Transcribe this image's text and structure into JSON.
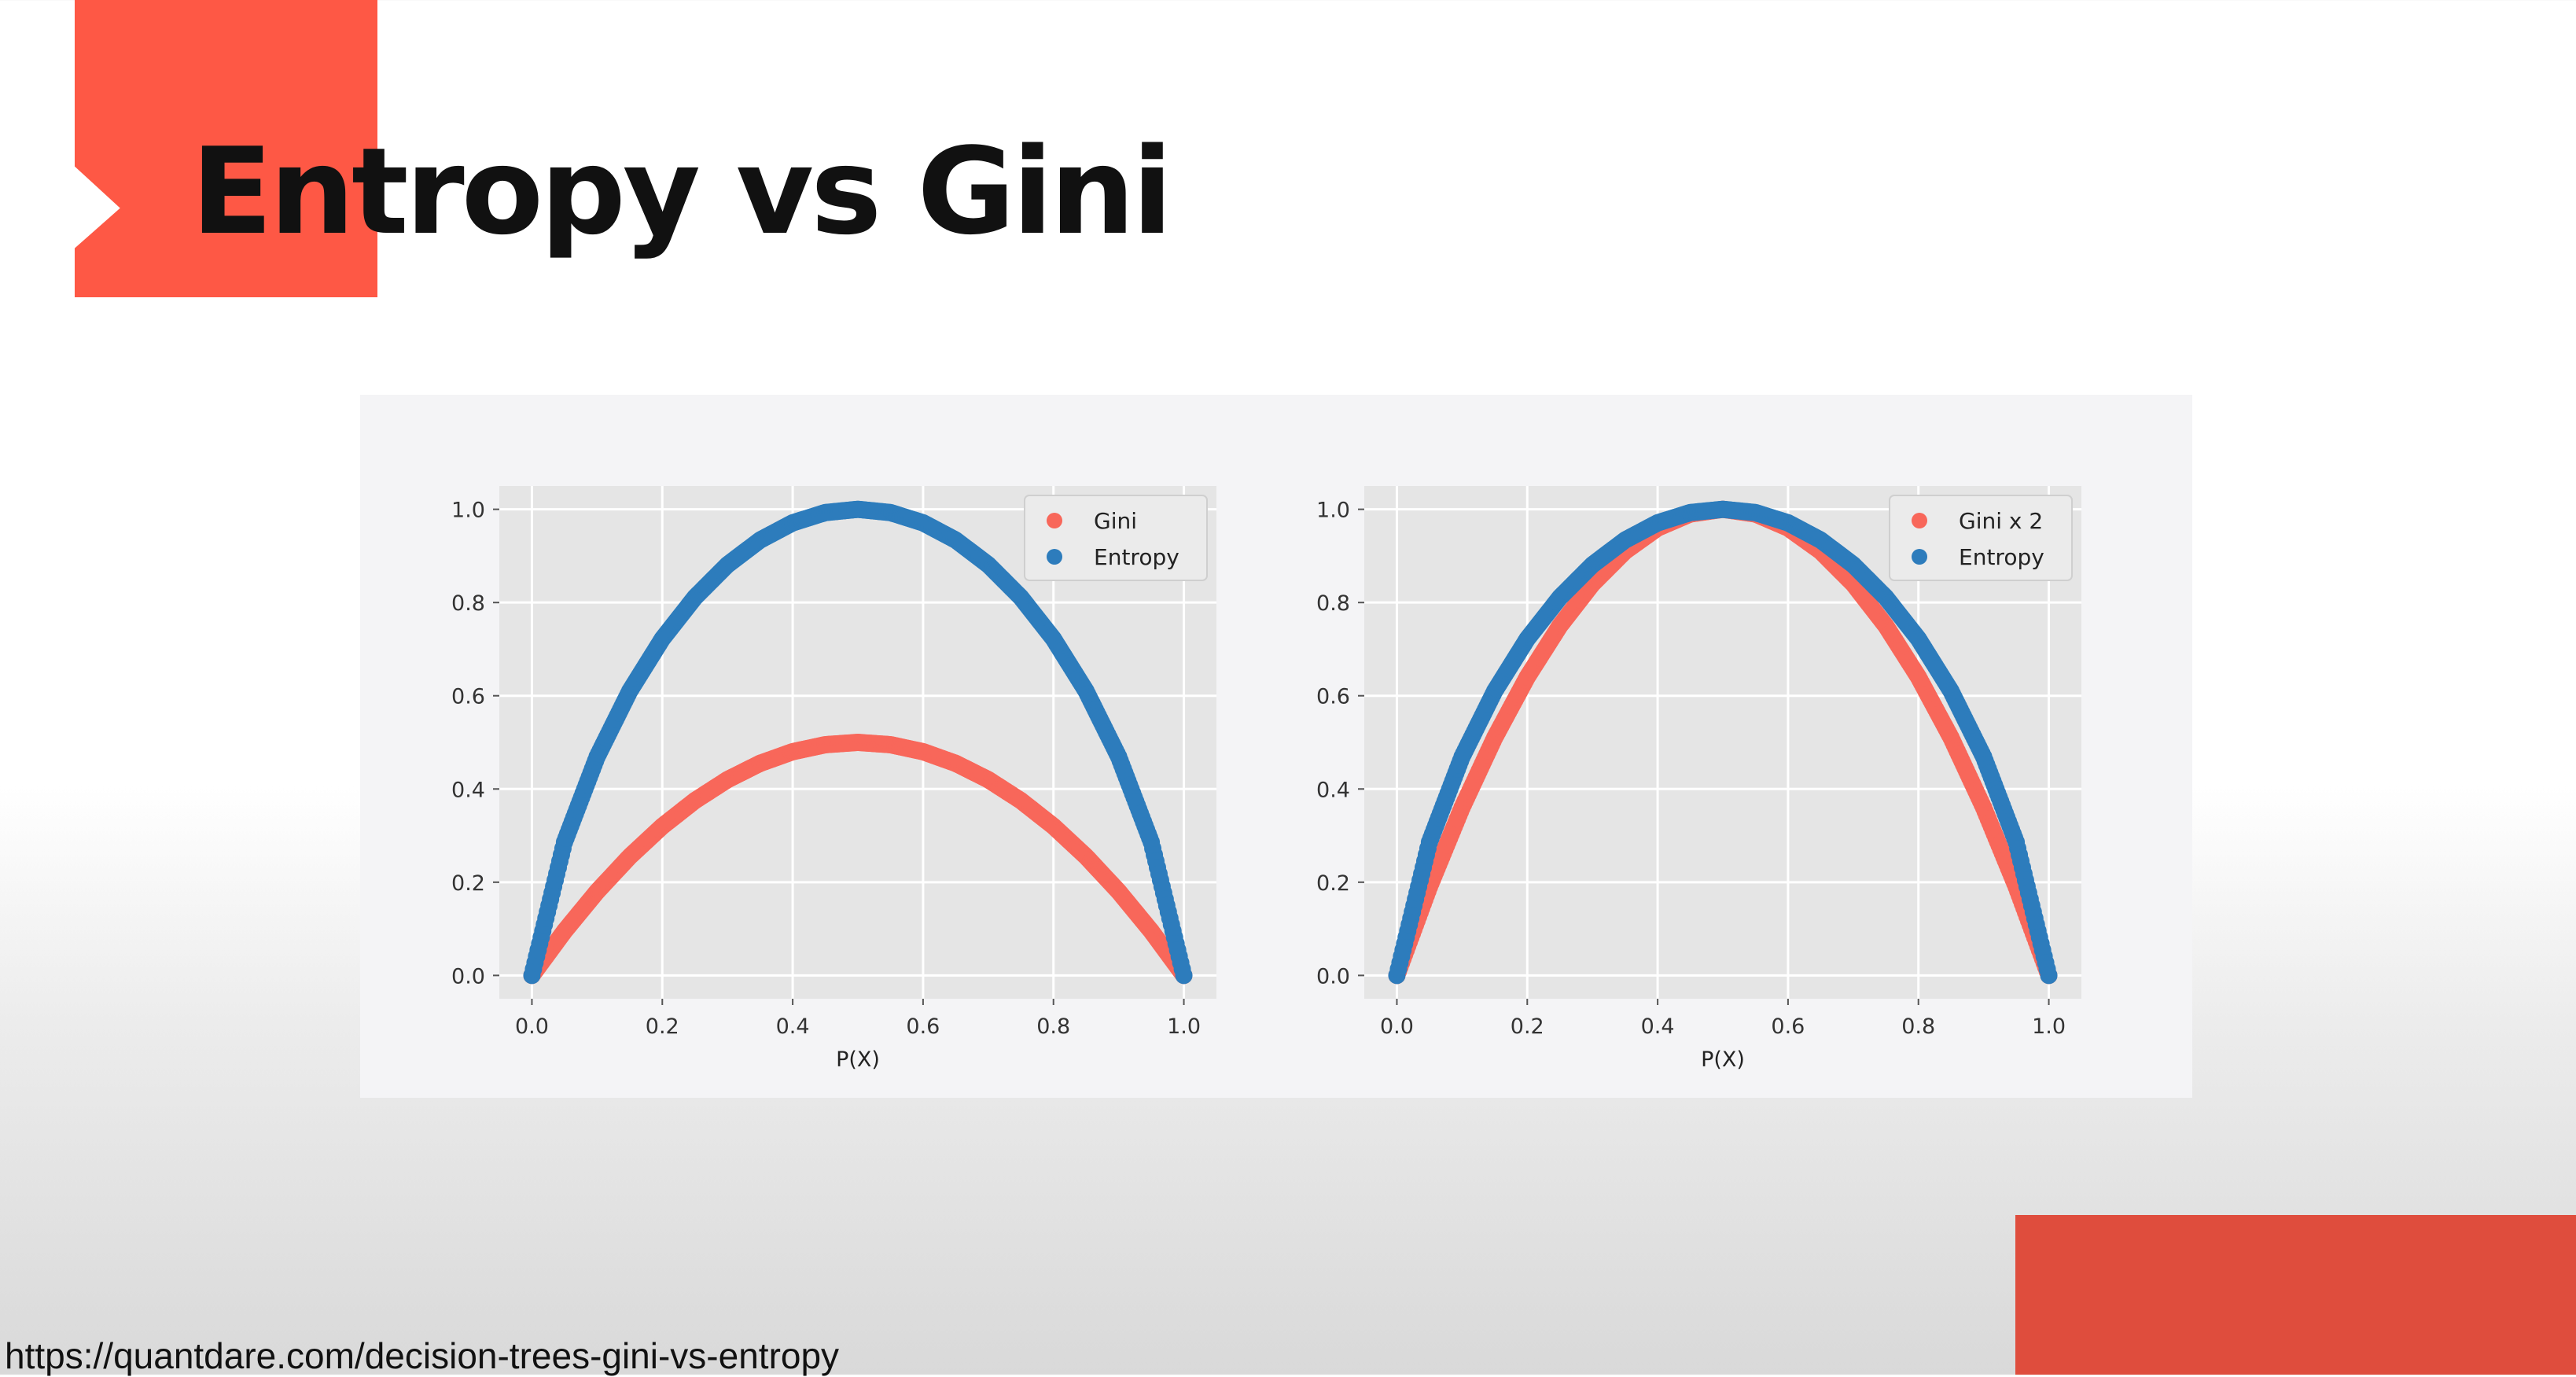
{
  "slide": {
    "title": "Entropy vs Gini",
    "source_url": "https://quantdare.com/decision-trees-gini-vs-entropy"
  },
  "colors": {
    "gini": "#f8675a",
    "entropy": "#2d7cbc",
    "accent_top": "#fe5845",
    "accent_bottom": "#df4d3d",
    "plot_bg": "#e5e5e5",
    "grid": "#ffffff"
  },
  "chart_data": [
    {
      "type": "scatter",
      "title": "",
      "xlabel": "P(X)",
      "ylabel": "",
      "xlim": [
        -0.05,
        1.05
      ],
      "ylim": [
        -0.05,
        1.05
      ],
      "xticks": [
        "0.0",
        "0.2",
        "0.4",
        "0.6",
        "0.8",
        "1.0"
      ],
      "yticks": [
        "0.0",
        "0.2",
        "0.4",
        "0.6",
        "0.8",
        "1.0"
      ],
      "grid": true,
      "legend": "top-right",
      "series": [
        {
          "name": "Gini",
          "color": "#f8675a",
          "x": [
            0.0,
            0.05,
            0.1,
            0.15,
            0.2,
            0.25,
            0.3,
            0.35,
            0.4,
            0.45,
            0.5,
            0.55,
            0.6,
            0.65,
            0.7,
            0.75,
            0.8,
            0.85,
            0.9,
            0.95,
            1.0
          ],
          "y": [
            0.0,
            0.095,
            0.18,
            0.255,
            0.32,
            0.375,
            0.42,
            0.455,
            0.48,
            0.495,
            0.5,
            0.495,
            0.48,
            0.455,
            0.42,
            0.375,
            0.32,
            0.255,
            0.18,
            0.095,
            0.0
          ]
        },
        {
          "name": "Entropy",
          "color": "#2d7cbc",
          "x": [
            0.0,
            0.05,
            0.1,
            0.15,
            0.2,
            0.25,
            0.3,
            0.35,
            0.4,
            0.45,
            0.5,
            0.55,
            0.6,
            0.65,
            0.7,
            0.75,
            0.8,
            0.85,
            0.9,
            0.95,
            1.0
          ],
          "y": [
            0.0,
            0.286,
            0.469,
            0.61,
            0.722,
            0.811,
            0.881,
            0.934,
            0.971,
            0.993,
            1.0,
            0.993,
            0.971,
            0.934,
            0.881,
            0.811,
            0.722,
            0.61,
            0.469,
            0.286,
            0.0
          ]
        }
      ]
    },
    {
      "type": "scatter",
      "title": "",
      "xlabel": "P(X)",
      "ylabel": "",
      "xlim": [
        -0.05,
        1.05
      ],
      "ylim": [
        -0.05,
        1.05
      ],
      "xticks": [
        "0.0",
        "0.2",
        "0.4",
        "0.6",
        "0.8",
        "1.0"
      ],
      "yticks": [
        "0.0",
        "0.2",
        "0.4",
        "0.6",
        "0.8",
        "1.0"
      ],
      "grid": true,
      "legend": "top-right",
      "series": [
        {
          "name": "Gini x 2",
          "color": "#f8675a",
          "x": [
            0.0,
            0.05,
            0.1,
            0.15,
            0.2,
            0.25,
            0.3,
            0.35,
            0.4,
            0.45,
            0.5,
            0.55,
            0.6,
            0.65,
            0.7,
            0.75,
            0.8,
            0.85,
            0.9,
            0.95,
            1.0
          ],
          "y": [
            0.0,
            0.19,
            0.36,
            0.51,
            0.64,
            0.75,
            0.84,
            0.91,
            0.96,
            0.99,
            1.0,
            0.99,
            0.96,
            0.91,
            0.84,
            0.75,
            0.64,
            0.51,
            0.36,
            0.19,
            0.0
          ]
        },
        {
          "name": "Entropy",
          "color": "#2d7cbc",
          "x": [
            0.0,
            0.05,
            0.1,
            0.15,
            0.2,
            0.25,
            0.3,
            0.35,
            0.4,
            0.45,
            0.5,
            0.55,
            0.6,
            0.65,
            0.7,
            0.75,
            0.8,
            0.85,
            0.9,
            0.95,
            1.0
          ],
          "y": [
            0.0,
            0.286,
            0.469,
            0.61,
            0.722,
            0.811,
            0.881,
            0.934,
            0.971,
            0.993,
            1.0,
            0.993,
            0.971,
            0.934,
            0.881,
            0.811,
            0.722,
            0.61,
            0.469,
            0.286,
            0.0
          ]
        }
      ]
    }
  ]
}
